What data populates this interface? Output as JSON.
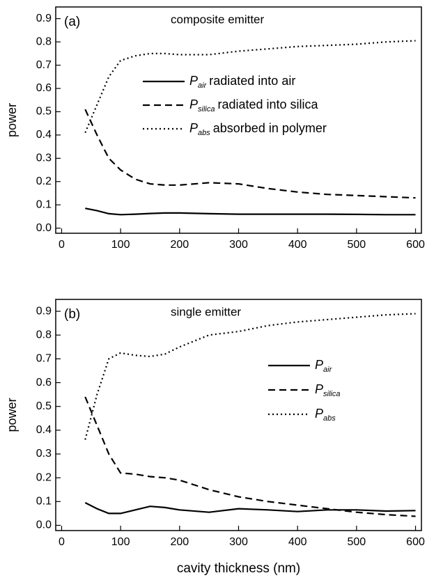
{
  "chart_data": [
    {
      "type": "line",
      "label": "(a)",
      "title": "composite emitter",
      "ylabel": "power",
      "x": [
        40,
        60,
        80,
        100,
        125,
        150,
        175,
        200,
        250,
        300,
        350,
        400,
        450,
        500,
        550,
        600
      ],
      "series": [
        {
          "name": "P",
          "subscript": "air",
          "description": "radiated into air",
          "color": "#000000",
          "dash": "solid",
          "values": [
            0.085,
            0.075,
            0.062,
            0.058,
            0.06,
            0.063,
            0.065,
            0.065,
            0.062,
            0.06,
            0.06,
            0.06,
            0.06,
            0.059,
            0.058,
            0.058
          ]
        },
        {
          "name": "P",
          "subscript": "silica",
          "description": "radiated into silica",
          "color": "#000000",
          "dash": "dashed",
          "values": [
            0.51,
            0.4,
            0.3,
            0.25,
            0.21,
            0.19,
            0.185,
            0.185,
            0.195,
            0.19,
            0.17,
            0.155,
            0.145,
            0.14,
            0.135,
            0.13
          ]
        },
        {
          "name": "P",
          "subscript": "abs",
          "description": "absorbed in polymer",
          "color": "#000000",
          "dash": "dotted",
          "values": [
            0.41,
            0.53,
            0.65,
            0.72,
            0.74,
            0.75,
            0.75,
            0.745,
            0.745,
            0.76,
            0.77,
            0.78,
            0.785,
            0.79,
            0.8,
            0.805
          ]
        }
      ],
      "xlim": [
        -10,
        610
      ],
      "xticks": [
        0,
        100,
        200,
        300,
        400,
        500,
        600
      ],
      "ylim": [
        -0.022,
        0.95
      ],
      "yticks": [
        {
          "value": 0,
          "label": "0.0"
        },
        0.1,
        0.2,
        0.3,
        0.4,
        0.5,
        0.6,
        0.7,
        0.8,
        0.9
      ]
    },
    {
      "type": "line",
      "label": "(b)",
      "title": "single emitter",
      "ylabel": "power",
      "xlabel": "cavity thickness (nm)",
      "x": [
        40,
        60,
        80,
        100,
        125,
        150,
        175,
        200,
        250,
        300,
        350,
        400,
        450,
        500,
        550,
        600
      ],
      "series": [
        {
          "name": "P",
          "subscript": "air",
          "color": "#000000",
          "dash": "solid",
          "values": [
            0.095,
            0.07,
            0.05,
            0.05,
            0.065,
            0.08,
            0.075,
            0.065,
            0.055,
            0.07,
            0.065,
            0.058,
            0.065,
            0.065,
            0.06,
            0.062
          ]
        },
        {
          "name": "P",
          "subscript": "silica",
          "color": "#000000",
          "dash": "dashed",
          "values": [
            0.54,
            0.42,
            0.3,
            0.22,
            0.215,
            0.205,
            0.2,
            0.19,
            0.15,
            0.12,
            0.1,
            0.085,
            0.07,
            0.055,
            0.045,
            0.038
          ]
        },
        {
          "name": "P",
          "subscript": "abs",
          "color": "#000000",
          "dash": "dotted",
          "values": [
            0.36,
            0.55,
            0.7,
            0.725,
            0.715,
            0.71,
            0.72,
            0.75,
            0.8,
            0.815,
            0.84,
            0.855,
            0.865,
            0.875,
            0.885,
            0.89
          ]
        }
      ],
      "xlim": [
        -10,
        610
      ],
      "xticks": [
        0,
        100,
        200,
        300,
        400,
        500,
        600
      ],
      "ylim": [
        -0.022,
        0.95
      ],
      "yticks": [
        {
          "value": 0,
          "label": "0.0"
        },
        0.1,
        0.2,
        0.3,
        0.4,
        0.5,
        0.6,
        0.7,
        0.8,
        0.9
      ]
    }
  ]
}
